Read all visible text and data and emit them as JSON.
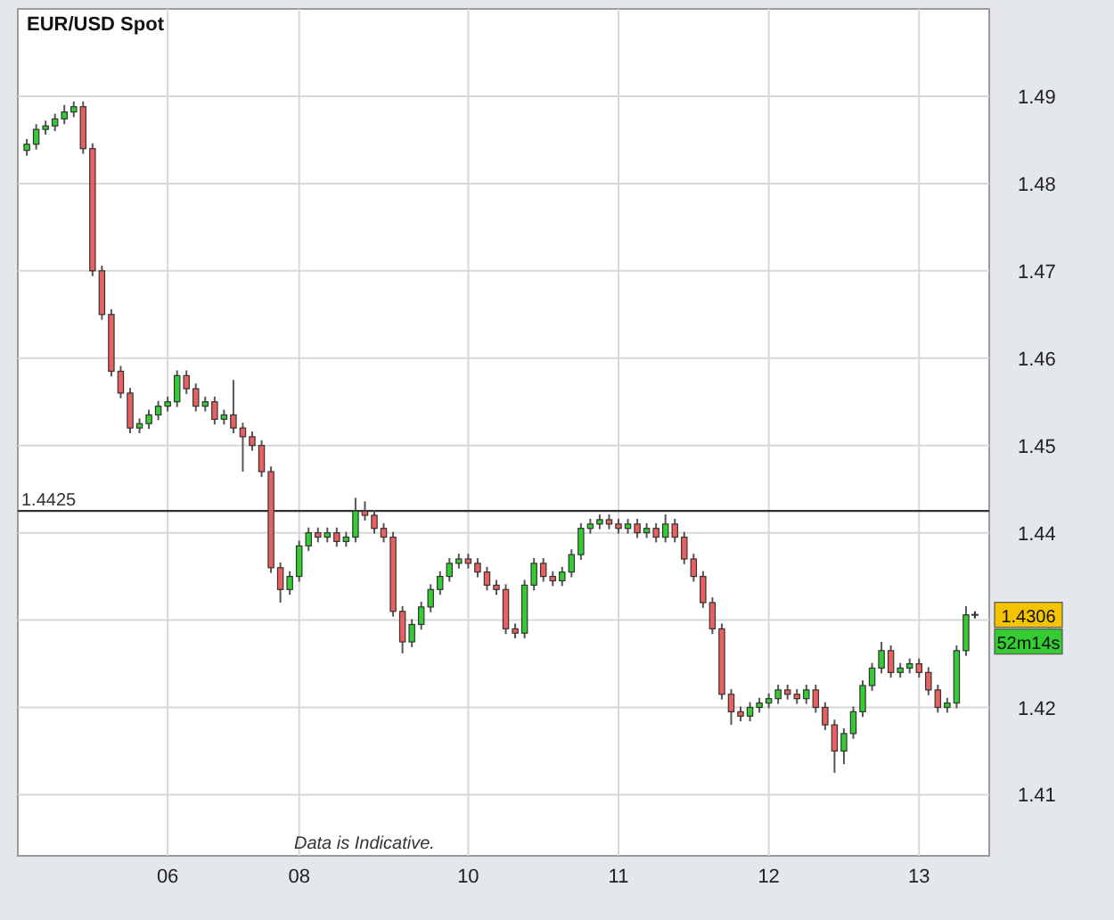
{
  "chart_data": {
    "type": "candlestick",
    "title": "EUR/USD Spot",
    "categories": [
      null,
      null,
      null,
      null,
      null,
      null,
      null,
      null,
      null,
      null,
      null,
      null,
      null,
      null,
      null,
      "06",
      null,
      null,
      null,
      null,
      null,
      null,
      null,
      null,
      null,
      null,
      null,
      null,
      null,
      "08",
      null,
      null,
      null,
      null,
      null,
      null,
      null,
      null,
      null,
      null,
      null,
      null,
      null,
      null,
      null,
      null,
      null,
      "10",
      null,
      null,
      null,
      null,
      null,
      null,
      null,
      null,
      null,
      null,
      null,
      null,
      null,
      null,
      null,
      "11",
      null,
      null,
      null,
      null,
      null,
      null,
      null,
      null,
      null,
      null,
      null,
      null,
      null,
      null,
      null,
      "12",
      null,
      null,
      null,
      null,
      null,
      null,
      null,
      null,
      null,
      null,
      null,
      null,
      null,
      null,
      null,
      "13",
      null,
      null,
      null,
      null,
      null
    ],
    "ohlc": [
      [
        1.4838,
        1.4851,
        1.4832,
        1.4845
      ],
      [
        1.4845,
        1.4868,
        1.4839,
        1.4862
      ],
      [
        1.4862,
        1.4872,
        1.4856,
        1.4866
      ],
      [
        1.4866,
        1.488,
        1.486,
        1.4874
      ],
      [
        1.4874,
        1.489,
        1.4868,
        1.4882
      ],
      [
        1.4882,
        1.4894,
        1.4876,
        1.4888
      ],
      [
        1.4888,
        1.4894,
        1.4834,
        1.484
      ],
      [
        1.484,
        1.4846,
        1.4694,
        1.47
      ],
      [
        1.47,
        1.4706,
        1.4644,
        1.465
      ],
      [
        1.465,
        1.4656,
        1.4579,
        1.4585
      ],
      [
        1.4585,
        1.4591,
        1.4554,
        1.456
      ],
      [
        1.456,
        1.4566,
        1.4514,
        1.452
      ],
      [
        1.452,
        1.4531,
        1.4514,
        1.4525
      ],
      [
        1.4525,
        1.4541,
        1.4519,
        1.4535
      ],
      [
        1.4535,
        1.4551,
        1.4529,
        1.4545
      ],
      [
        1.4545,
        1.4556,
        1.4539,
        1.455
      ],
      [
        1.455,
        1.4586,
        1.4544,
        1.458
      ],
      [
        1.458,
        1.4586,
        1.4559,
        1.4565
      ],
      [
        1.4565,
        1.4571,
        1.4539,
        1.4545
      ],
      [
        1.4545,
        1.4556,
        1.4539,
        1.455
      ],
      [
        1.455,
        1.4556,
        1.4524,
        1.453
      ],
      [
        1.453,
        1.4541,
        1.4524,
        1.4535
      ],
      [
        1.4535,
        1.4575,
        1.4514,
        1.452
      ],
      [
        1.452,
        1.4526,
        1.447,
        1.451
      ],
      [
        1.451,
        1.4516,
        1.4494,
        1.45
      ],
      [
        1.45,
        1.4506,
        1.4464,
        1.447
      ],
      [
        1.447,
        1.4476,
        1.4354,
        1.436
      ],
      [
        1.436,
        1.4366,
        1.432,
        1.4335
      ],
      [
        1.4335,
        1.4356,
        1.4329,
        1.435
      ],
      [
        1.435,
        1.4391,
        1.4344,
        1.4385
      ],
      [
        1.4385,
        1.4406,
        1.4379,
        1.44
      ],
      [
        1.44,
        1.4406,
        1.4389,
        1.4395
      ],
      [
        1.4395,
        1.4406,
        1.4389,
        1.44
      ],
      [
        1.44,
        1.4406,
        1.4384,
        1.439
      ],
      [
        1.439,
        1.4401,
        1.4384,
        1.4395
      ],
      [
        1.4395,
        1.444,
        1.4389,
        1.4425
      ],
      [
        1.4425,
        1.4436,
        1.4414,
        1.442
      ],
      [
        1.442,
        1.4426,
        1.4399,
        1.4405
      ],
      [
        1.4405,
        1.4411,
        1.4389,
        1.4395
      ],
      [
        1.4395,
        1.4401,
        1.4304,
        1.431
      ],
      [
        1.431,
        1.4316,
        1.4262,
        1.4275
      ],
      [
        1.4275,
        1.4301,
        1.4269,
        1.4295
      ],
      [
        1.4295,
        1.4321,
        1.4289,
        1.4315
      ],
      [
        1.4315,
        1.4341,
        1.4309,
        1.4335
      ],
      [
        1.4335,
        1.4356,
        1.4329,
        1.435
      ],
      [
        1.435,
        1.4371,
        1.4344,
        1.4365
      ],
      [
        1.4365,
        1.4376,
        1.4359,
        1.437
      ],
      [
        1.437,
        1.4376,
        1.4359,
        1.4365
      ],
      [
        1.4365,
        1.4371,
        1.4349,
        1.4355
      ],
      [
        1.4355,
        1.4361,
        1.4334,
        1.434
      ],
      [
        1.434,
        1.4346,
        1.4329,
        1.4335
      ],
      [
        1.4335,
        1.4341,
        1.4284,
        1.429
      ],
      [
        1.429,
        1.4296,
        1.4279,
        1.4285
      ],
      [
        1.4285,
        1.4346,
        1.4279,
        1.434
      ],
      [
        1.434,
        1.4371,
        1.4334,
        1.4365
      ],
      [
        1.4365,
        1.4371,
        1.4344,
        1.435
      ],
      [
        1.435,
        1.4356,
        1.4339,
        1.4345
      ],
      [
        1.4345,
        1.4361,
        1.4339,
        1.4355
      ],
      [
        1.4355,
        1.4381,
        1.4349,
        1.4375
      ],
      [
        1.4375,
        1.4411,
        1.4369,
        1.4405
      ],
      [
        1.4405,
        1.4416,
        1.4399,
        1.441
      ],
      [
        1.441,
        1.4421,
        1.4404,
        1.4415
      ],
      [
        1.4415,
        1.4421,
        1.4404,
        1.441
      ],
      [
        1.441,
        1.4416,
        1.4399,
        1.4405
      ],
      [
        1.4405,
        1.4416,
        1.4399,
        1.441
      ],
      [
        1.441,
        1.4416,
        1.4394,
        1.44
      ],
      [
        1.44,
        1.4411,
        1.4394,
        1.4405
      ],
      [
        1.4405,
        1.4411,
        1.4389,
        1.4395
      ],
      [
        1.4395,
        1.4421,
        1.4389,
        1.441
      ],
      [
        1.441,
        1.4416,
        1.4389,
        1.4395
      ],
      [
        1.4395,
        1.4401,
        1.4364,
        1.437
      ],
      [
        1.437,
        1.4376,
        1.4344,
        1.435
      ],
      [
        1.435,
        1.4356,
        1.4314,
        1.432
      ],
      [
        1.432,
        1.4326,
        1.4284,
        1.429
      ],
      [
        1.429,
        1.4296,
        1.4209,
        1.4215
      ],
      [
        1.4215,
        1.4221,
        1.418,
        1.4195
      ],
      [
        1.4195,
        1.4201,
        1.4184,
        1.419
      ],
      [
        1.419,
        1.4206,
        1.4184,
        1.42
      ],
      [
        1.42,
        1.4211,
        1.4194,
        1.4205
      ],
      [
        1.4205,
        1.4216,
        1.4199,
        1.421
      ],
      [
        1.421,
        1.4226,
        1.4204,
        1.422
      ],
      [
        1.422,
        1.4226,
        1.4209,
        1.4215
      ],
      [
        1.4215,
        1.4221,
        1.4204,
        1.421
      ],
      [
        1.421,
        1.4226,
        1.4204,
        1.422
      ],
      [
        1.422,
        1.4226,
        1.4194,
        1.42
      ],
      [
        1.42,
        1.4206,
        1.4174,
        1.418
      ],
      [
        1.418,
        1.4186,
        1.4125,
        1.415
      ],
      [
        1.415,
        1.4176,
        1.4135,
        1.417
      ],
      [
        1.417,
        1.4201,
        1.4164,
        1.4195
      ],
      [
        1.4195,
        1.4231,
        1.4189,
        1.4225
      ],
      [
        1.4225,
        1.4251,
        1.4219,
        1.4245
      ],
      [
        1.4245,
        1.4275,
        1.4239,
        1.4265
      ],
      [
        1.4265,
        1.4271,
        1.4234,
        1.424
      ],
      [
        1.424,
        1.4251,
        1.4234,
        1.4245
      ],
      [
        1.4245,
        1.4256,
        1.4239,
        1.425
      ],
      [
        1.425,
        1.4256,
        1.4234,
        1.424
      ],
      [
        1.424,
        1.4246,
        1.4214,
        1.422
      ],
      [
        1.422,
        1.4226,
        1.4194,
        1.42
      ],
      [
        1.42,
        1.4211,
        1.4194,
        1.4205
      ],
      [
        1.4205,
        1.4271,
        1.4199,
        1.4265
      ],
      [
        1.4265,
        1.4316,
        1.4259,
        1.4306
      ]
    ],
    "ylim": [
      1.403,
      1.5
    ],
    "yticks": [
      1.41,
      1.42,
      1.43,
      1.44,
      1.45,
      1.46,
      1.47,
      1.48,
      1.49
    ],
    "grid": true,
    "ref_lines": [
      {
        "axis": "y",
        "value": 1.4425,
        "label": "1.4425",
        "color": "#333333"
      }
    ],
    "annotations": [
      "Data is Indicative.",
      {
        "text": "1.4306",
        "y": 1.4306
      },
      "52m14s"
    ]
  }
}
